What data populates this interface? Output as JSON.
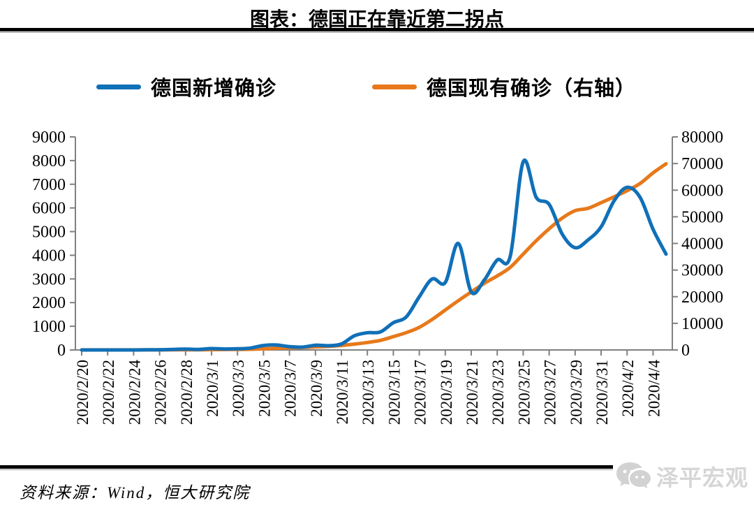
{
  "title": "图表：德国正在靠近第二拐点",
  "legend": {
    "items": [
      {
        "label": "德国新增确诊",
        "color": "#1070B8"
      },
      {
        "label": "德国现有确诊（右轴）",
        "color": "#E7791B"
      }
    ]
  },
  "footer": {
    "source": "资料来源：Wind，恒大研究院",
    "watermark_text": "泽平宏观",
    "watermark_icon": "wechat-icon"
  },
  "colors": {
    "series_blue": "#1070B8",
    "series_orange": "#E7791B",
    "axis": "#808080",
    "tick_label": "#000000",
    "rule": "#000000",
    "watermark": "#d6d6d6"
  },
  "chart_data": {
    "type": "line",
    "title": "图表：德国正在靠近第二拐点",
    "xlabel": "",
    "ylabel_left": "",
    "ylabel_right": "",
    "grid": false,
    "legend_position": "top",
    "x": [
      "2020/2/20",
      "2020/2/21",
      "2020/2/22",
      "2020/2/23",
      "2020/2/24",
      "2020/2/25",
      "2020/2/26",
      "2020/2/27",
      "2020/2/28",
      "2020/2/29",
      "2020/3/1",
      "2020/3/2",
      "2020/3/3",
      "2020/3/4",
      "2020/3/5",
      "2020/3/6",
      "2020/3/7",
      "2020/3/8",
      "2020/3/9",
      "2020/3/10",
      "2020/3/11",
      "2020/3/12",
      "2020/3/13",
      "2020/3/14",
      "2020/3/15",
      "2020/3/16",
      "2020/3/17",
      "2020/3/18",
      "2020/3/19",
      "2020/3/20",
      "2020/3/21",
      "2020/3/22",
      "2020/3/23",
      "2020/3/24",
      "2020/3/25",
      "2020/3/26",
      "2020/3/27",
      "2020/3/28",
      "2020/3/29",
      "2020/3/30",
      "2020/3/31",
      "2020/4/1",
      "2020/4/2",
      "2020/4/3",
      "2020/4/4",
      "2020/4/5"
    ],
    "x_tick_labels": [
      "2020/2/20",
      "2020/2/22",
      "2020/2/24",
      "2020/2/26",
      "2020/2/28",
      "2020/3/1",
      "2020/3/3",
      "2020/3/5",
      "2020/3/7",
      "2020/3/9",
      "2020/3/11",
      "2020/3/13",
      "2020/3/15",
      "2020/3/17",
      "2020/3/19",
      "2020/3/21",
      "2020/3/23",
      "2020/3/25",
      "2020/3/27",
      "2020/3/29",
      "2020/3/31",
      "2020/4/2",
      "2020/4/4"
    ],
    "left_axis": {
      "min": 0,
      "max": 9000,
      "step": 1000,
      "tick_labels": [
        "0",
        "1000",
        "2000",
        "3000",
        "4000",
        "5000",
        "6000",
        "7000",
        "8000",
        "9000"
      ]
    },
    "right_axis": {
      "min": 0,
      "max": 80000,
      "step": 10000,
      "tick_labels": [
        "0",
        "10000",
        "20000",
        "30000",
        "40000",
        "50000",
        "60000",
        "70000",
        "80000"
      ]
    },
    "series": [
      {
        "name": "德国新增确诊",
        "axis": "left",
        "color": "#1070B8",
        "values": [
          0,
          0,
          0,
          0,
          0,
          5,
          10,
          25,
          35,
          25,
          60,
          40,
          50,
          80,
          190,
          210,
          140,
          120,
          200,
          180,
          250,
          600,
          730,
          760,
          1150,
          1400,
          2250,
          3000,
          2850,
          4500,
          2450,
          2950,
          3800,
          3950,
          7950,
          6450,
          6150,
          4900,
          4320,
          4650,
          5200,
          6300,
          6870,
          6450,
          5100,
          4050
        ]
      },
      {
        "name": "德国现有确诊（右轴）",
        "axis": "right",
        "color": "#E7791B",
        "values": [
          16,
          16,
          16,
          16,
          17,
          18,
          30,
          48,
          60,
          75,
          130,
          160,
          200,
          260,
          420,
          650,
          800,
          950,
          1150,
          1350,
          1700,
          2200,
          2800,
          3600,
          5000,
          6500,
          8500,
          11500,
          15000,
          18500,
          21800,
          25000,
          27800,
          31000,
          36000,
          41000,
          45500,
          49500,
          52300,
          53200,
          55300,
          57500,
          59800,
          62500,
          66500,
          69900
        ]
      }
    ]
  }
}
